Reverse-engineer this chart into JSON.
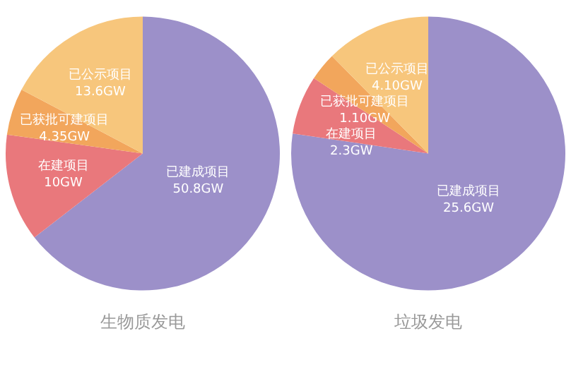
{
  "chart_data": [
    {
      "type": "pie",
      "title": "生物质发电",
      "categories": [
        "已建成项目",
        "在建项目",
        "已获批可建项目",
        "已公示项目"
      ],
      "values": [
        50.8,
        10,
        4.35,
        13.6
      ],
      "value_labels": [
        "50.8GW",
        "10GW",
        "4.35GW",
        "13.6GW"
      ],
      "colors": [
        "#9c90c9",
        "#e9787c",
        "#f2a65c",
        "#f7c67c"
      ],
      "legend": false
    },
    {
      "type": "pie",
      "title": "垃圾发电",
      "categories": [
        "已建成项目",
        "在建项目",
        "已获批可建项目",
        "已公示项目"
      ],
      "values": [
        25.6,
        2.3,
        1.1,
        4.1
      ],
      "value_labels": [
        "25.6GW",
        "2.3GW",
        "1.10GW",
        "4.10GW"
      ],
      "colors": [
        "#9c90c9",
        "#e9787c",
        "#f2a65c",
        "#f7c67c"
      ],
      "legend": false
    }
  ]
}
